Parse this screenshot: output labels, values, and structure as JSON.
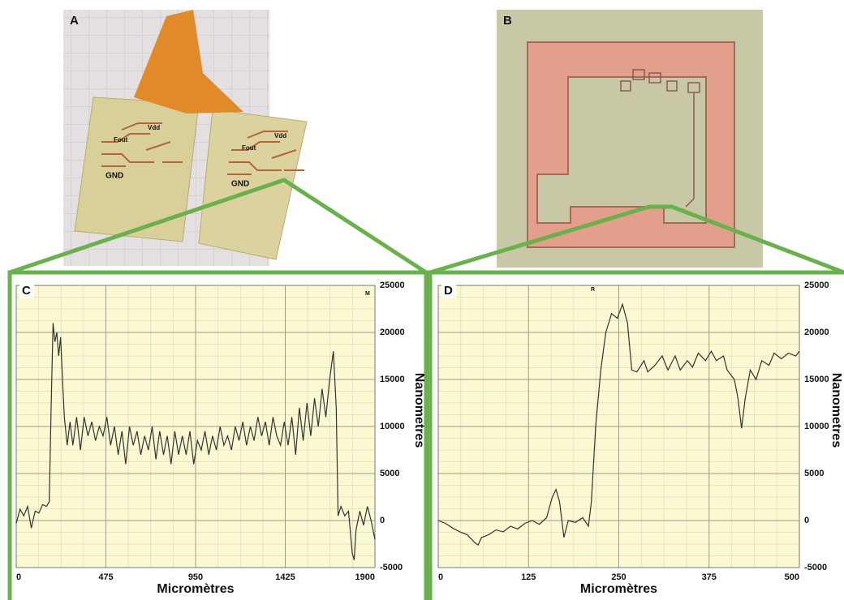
{
  "photos": {
    "a": {
      "label": "A",
      "board_texts": [
        "Fout",
        "Vdd",
        "GND"
      ]
    },
    "b": {
      "label": "B"
    }
  },
  "chart_data": [
    {
      "type": "line",
      "panel": "C",
      "annotation": "M",
      "xlabel": "Micromètres",
      "ylabel": "Nanometres",
      "xlim": [
        0,
        1900
      ],
      "ylim": [
        -5000,
        25000
      ],
      "xticks": [
        0,
        475,
        950,
        1425,
        1900
      ],
      "yticks": [
        -5000,
        0,
        5000,
        10000,
        15000,
        20000,
        25000
      ],
      "grid": true,
      "y_axis_side": "right",
      "x": [
        0,
        20,
        40,
        60,
        80,
        100,
        120,
        140,
        160,
        175,
        185,
        195,
        205,
        215,
        225,
        235,
        245,
        255,
        270,
        285,
        300,
        320,
        340,
        360,
        380,
        400,
        420,
        440,
        460,
        480,
        500,
        520,
        540,
        560,
        580,
        600,
        620,
        640,
        660,
        680,
        700,
        720,
        740,
        760,
        780,
        800,
        820,
        840,
        860,
        880,
        900,
        920,
        940,
        960,
        980,
        1000,
        1020,
        1040,
        1060,
        1080,
        1100,
        1120,
        1140,
        1160,
        1180,
        1200,
        1220,
        1240,
        1260,
        1280,
        1300,
        1320,
        1340,
        1360,
        1380,
        1400,
        1420,
        1440,
        1460,
        1480,
        1500,
        1520,
        1540,
        1560,
        1580,
        1600,
        1620,
        1640,
        1660,
        1680,
        1695,
        1705,
        1720,
        1740,
        1760,
        1780,
        1790,
        1800,
        1820,
        1840,
        1860,
        1880,
        1900
      ],
      "series": [
        {
          "color": "#333333",
          "values": [
            -300,
            1200,
            500,
            1500,
            -800,
            1000,
            800,
            1700,
            1500,
            2000,
            12000,
            21000,
            19000,
            20000,
            17500,
            19500,
            15000,
            11000,
            8000,
            10500,
            8000,
            11000,
            7500,
            11000,
            9000,
            10500,
            8500,
            10000,
            9000,
            11000,
            8000,
            10000,
            7000,
            9500,
            6000,
            10000,
            8000,
            9500,
            7000,
            9000,
            7500,
            10000,
            6500,
            9500,
            7000,
            9000,
            6000,
            9500,
            7000,
            9000,
            7000,
            9500,
            6000,
            8500,
            7500,
            9500,
            7000,
            9000,
            7500,
            10000,
            8000,
            9000,
            7500,
            10000,
            8500,
            10500,
            8000,
            10000,
            8500,
            11000,
            9000,
            10500,
            8000,
            11000,
            9000,
            8000,
            10500,
            8000,
            11000,
            7000,
            12000,
            8500,
            12500,
            9000,
            13000,
            10000,
            14000,
            11000,
            15000,
            18000,
            12000,
            500,
            1500,
            500,
            1000,
            -3500,
            -4200,
            -1000,
            1000,
            -500,
            1500,
            0,
            -2000
          ]
        }
      ]
    },
    {
      "type": "line",
      "panel": "D",
      "annotation": "R",
      "xlabel": "Micromètres",
      "ylabel": "Nanometres",
      "xlim": [
        0,
        500
      ],
      "ylim": [
        -5000,
        25000
      ],
      "xticks": [
        0,
        125,
        250,
        375,
        500
      ],
      "yticks": [
        -5000,
        0,
        5000,
        10000,
        15000,
        20000,
        25000
      ],
      "grid": true,
      "y_axis_side": "right",
      "x": [
        0,
        10,
        20,
        30,
        40,
        50,
        55,
        60,
        70,
        80,
        90,
        100,
        110,
        120,
        130,
        140,
        150,
        158,
        163,
        168,
        174,
        180,
        190,
        200,
        208,
        212,
        218,
        225,
        232,
        240,
        248,
        255,
        262,
        268,
        275,
        285,
        290,
        300,
        310,
        318,
        328,
        335,
        345,
        352,
        360,
        370,
        378,
        385,
        395,
        400,
        410,
        415,
        420,
        425,
        432,
        440,
        448,
        458,
        465,
        475,
        485,
        495,
        500
      ],
      "series": [
        {
          "color": "#333333",
          "values": [
            0,
            -300,
            -800,
            -1200,
            -1500,
            -2300,
            -2600,
            -1800,
            -1500,
            -1000,
            -1200,
            -600,
            -900,
            -300,
            0,
            -400,
            300,
            2500,
            3300,
            2000,
            -1800,
            0,
            -200,
            300,
            -600,
            2000,
            10000,
            16000,
            20000,
            22000,
            21500,
            23000,
            21000,
            16000,
            15800,
            17000,
            15800,
            16500,
            17500,
            16000,
            17500,
            16000,
            17000,
            16300,
            17800,
            17000,
            18000,
            17000,
            17500,
            16000,
            15000,
            13000,
            9800,
            13000,
            16000,
            15000,
            17000,
            16500,
            17800,
            17200,
            17800,
            17500,
            18000
          ]
        }
      ]
    }
  ]
}
